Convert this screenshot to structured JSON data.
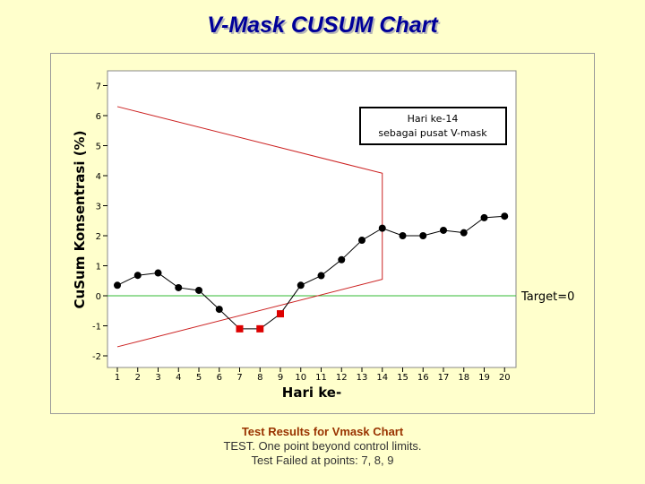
{
  "title": "V-Mask CUSUM Chart",
  "results": {
    "heading": "Test Results for Vmask Chart",
    "line1": "TEST. One point beyond control limits.",
    "line2": "Test Failed at points:  7, 8, 9"
  },
  "colors": {
    "background": "#ffffcc",
    "title": "#000099",
    "mask": "#cc2222",
    "target": "#33bb33",
    "in_control": "#000000",
    "out_of_control": "#dd0000",
    "results_heading": "#993300"
  },
  "chart_data": {
    "type": "line",
    "xlabel": "Hari ke-",
    "ylabel": "CuSum Konsentrasi (%)",
    "x": [
      1,
      2,
      3,
      4,
      5,
      6,
      7,
      8,
      9,
      10,
      11,
      12,
      13,
      14,
      15,
      16,
      17,
      18,
      19,
      20
    ],
    "y": [
      0.35,
      0.68,
      0.76,
      0.27,
      0.18,
      -0.45,
      -1.1,
      -1.1,
      -0.6,
      0.35,
      0.67,
      1.2,
      1.85,
      2.25,
      2.0,
      2.0,
      2.18,
      2.1,
      2.6,
      2.65
    ],
    "out_of_control_points": [
      7,
      8,
      9
    ],
    "xlim": [
      1,
      20
    ],
    "ylim": [
      -2,
      7
    ],
    "yticks": [
      7,
      6,
      5,
      4,
      3,
      2,
      1,
      0,
      -1,
      -2
    ],
    "xticks": [
      1,
      2,
      3,
      4,
      5,
      6,
      7,
      8,
      9,
      10,
      11,
      12,
      13,
      14,
      15,
      16,
      17,
      18,
      19,
      20
    ],
    "target": {
      "value": 0,
      "label": "Target=0"
    },
    "vmask": {
      "center_x": 14,
      "upper": [
        [
          1,
          6.3
        ],
        [
          14,
          4.08
        ]
      ],
      "lower": [
        [
          1,
          -1.7
        ],
        [
          14,
          0.55
        ]
      ]
    },
    "annotation": {
      "line1": "Hari ke-14",
      "line2": "sebagai pusat V-mask"
    },
    "grid": false
  }
}
